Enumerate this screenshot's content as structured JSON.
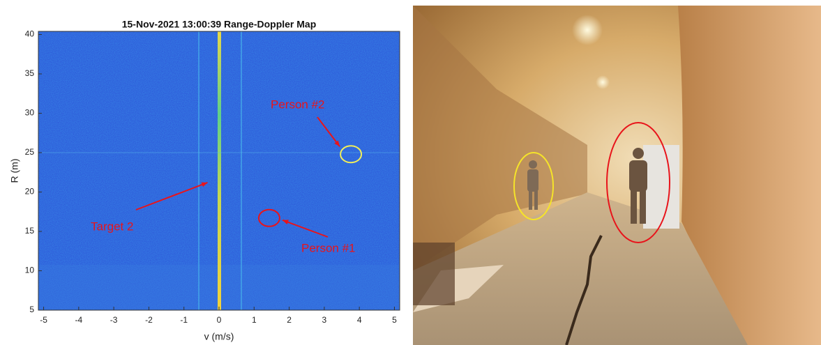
{
  "chart_data": {
    "type": "heatmap",
    "title": "15-Nov-2021 13:00:39   Range-Doppler Map",
    "x_label": "v (m/s)",
    "y_label": "R (m)",
    "xlim": [
      -5.15,
      5.15
    ],
    "xticks": [
      -5,
      -4,
      -3,
      -2,
      -1,
      0,
      1,
      2,
      3,
      4,
      5
    ],
    "ylim": [
      5,
      40.4
    ],
    "yticks": [
      5,
      10,
      15,
      20,
      25,
      30,
      35,
      40
    ],
    "annotations": [
      {
        "text": "Person #2",
        "x": 3.76,
        "y": 24.8,
        "circle_color": "#f2ef5a"
      },
      {
        "text": "Person #1",
        "x": 1.43,
        "y": 16.7,
        "circle_color": "#e8141b"
      },
      {
        "text": "Target 2",
        "x": -0.15,
        "y": 21.2
      }
    ]
  }
}
